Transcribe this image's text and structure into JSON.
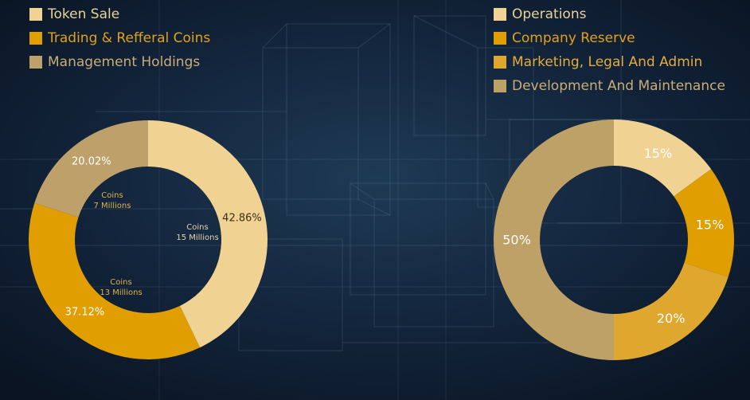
{
  "colors": {
    "legend_text_light": "#e8d19a",
    "legend_text_gold": "#e0a21c",
    "center_text": "#2a2417",
    "slice_label_dark": "#3a2f18",
    "slice_label_light": "#ffffff",
    "inner_label": "#e0b24a"
  },
  "chart_data": [
    {
      "type": "pie",
      "variant": "donut",
      "legend_position": "top-left",
      "series": [
        {
          "name": "Token Sale",
          "value": 42.86,
          "label": "42.86%",
          "color": "#f0d292",
          "text_color": "#e8d19a"
        },
        {
          "name": "Trading & Refferal Coins",
          "value": 37.12,
          "label": "37.12%",
          "color": "#e09e00",
          "text_color": "#e0a21c"
        },
        {
          "name": "Management Holdings",
          "value": 20.02,
          "label": "20.02%",
          "color": "#bda06a",
          "text_color": "#c9ad78"
        }
      ],
      "inner_labels": [
        {
          "for": "Token Sale",
          "line1": "Coins",
          "line2": "15 Millions"
        },
        {
          "for": "Trading & Refferal Coins",
          "line1": "Coins",
          "line2": "13 Millions"
        },
        {
          "for": "Management Holdings",
          "line1": "Coins",
          "line2": "7 Millions"
        }
      ]
    },
    {
      "type": "pie",
      "variant": "donut",
      "legend_position": "top-right",
      "series": [
        {
          "name": "Operations",
          "value": 15,
          "label": "15%",
          "color": "#f0d392",
          "text_color": "#e8d19a"
        },
        {
          "name": "Company Reserve",
          "value": 15,
          "label": "15%",
          "color": "#e09e00",
          "text_color": "#e0a21c"
        },
        {
          "name": "Marketing, Legal And Admin",
          "value": 20,
          "label": "20%",
          "color": "#dfa72e",
          "text_color": "#e3ad3c"
        },
        {
          "name": "Development And Maintenance",
          "value": 50,
          "label": "50%",
          "color": "#bea166",
          "text_color": "#c9ad78"
        }
      ]
    }
  ]
}
